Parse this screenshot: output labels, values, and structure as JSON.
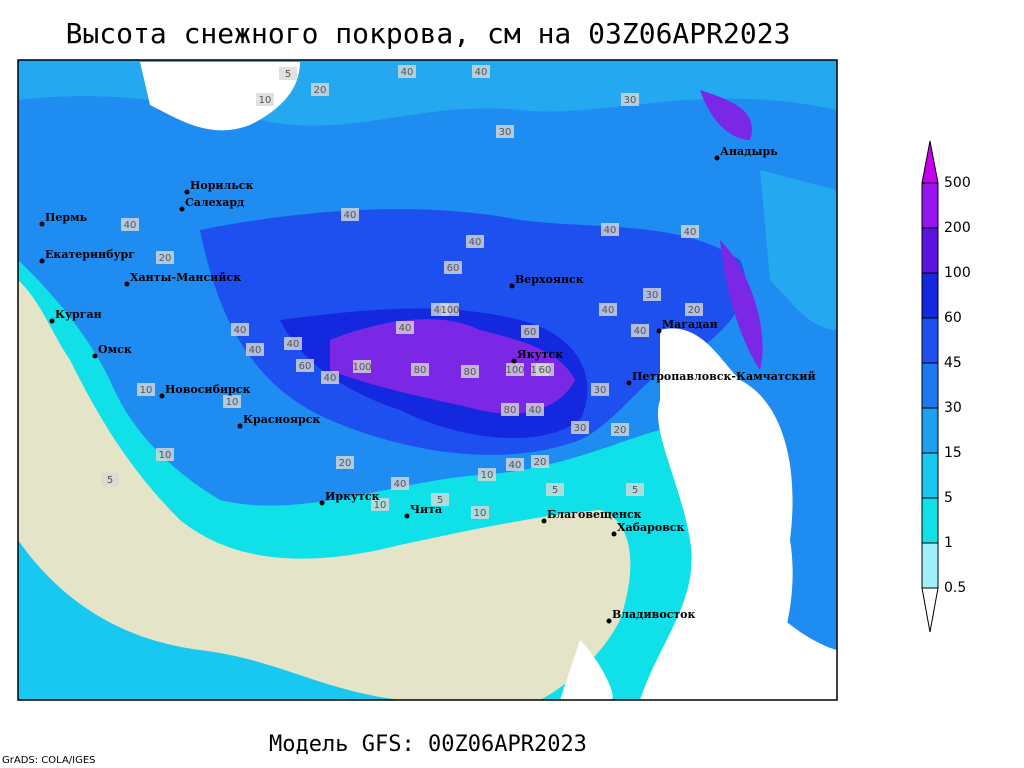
{
  "title": "Высота снежного покрова, см на 03Z06APR2023",
  "subtitle": "Модель GFS: 00Z06APR2023",
  "credit": "GrADS: COLA/IGES",
  "colorbar": {
    "levels": [
      0.5,
      1,
      5,
      15,
      30,
      45,
      60,
      100,
      200,
      500
    ],
    "colors": [
      "#ffffff",
      "#a0f0fa",
      "#10e0e8",
      "#18c8f0",
      "#1ea0f0",
      "#1e78f0",
      "#1e50f0",
      "#1428e0",
      "#5a14e0",
      "#9614f0",
      "#c800f0"
    ]
  },
  "cities": [
    "Анадырь",
    "Норильск",
    "Салехард",
    "Пермь",
    "Екатеринбург",
    "Ханты-Мансийск",
    "Курган",
    "Омск",
    "Новосибирск",
    "Красноярск",
    "Иркутск",
    "Чита",
    "Благовещенск",
    "Хабаровск",
    "Владивосток",
    "Верхоянск",
    "Якутск",
    "Магадан",
    "Петропавловск-Камчатский"
  ],
  "contour_labels": [
    40,
    40,
    30,
    30,
    20,
    10,
    5,
    40,
    40,
    60,
    40,
    40,
    40,
    40,
    40,
    40,
    60,
    40,
    80,
    100,
    100,
    60,
    80,
    100,
    150,
    60,
    80,
    40,
    30,
    20,
    20,
    10,
    10,
    5,
    10,
    40,
    20,
    40,
    30,
    20,
    10,
    5,
    5,
    10,
    40,
    40,
    40,
    30,
    40,
    20,
    10,
    5
  ]
}
